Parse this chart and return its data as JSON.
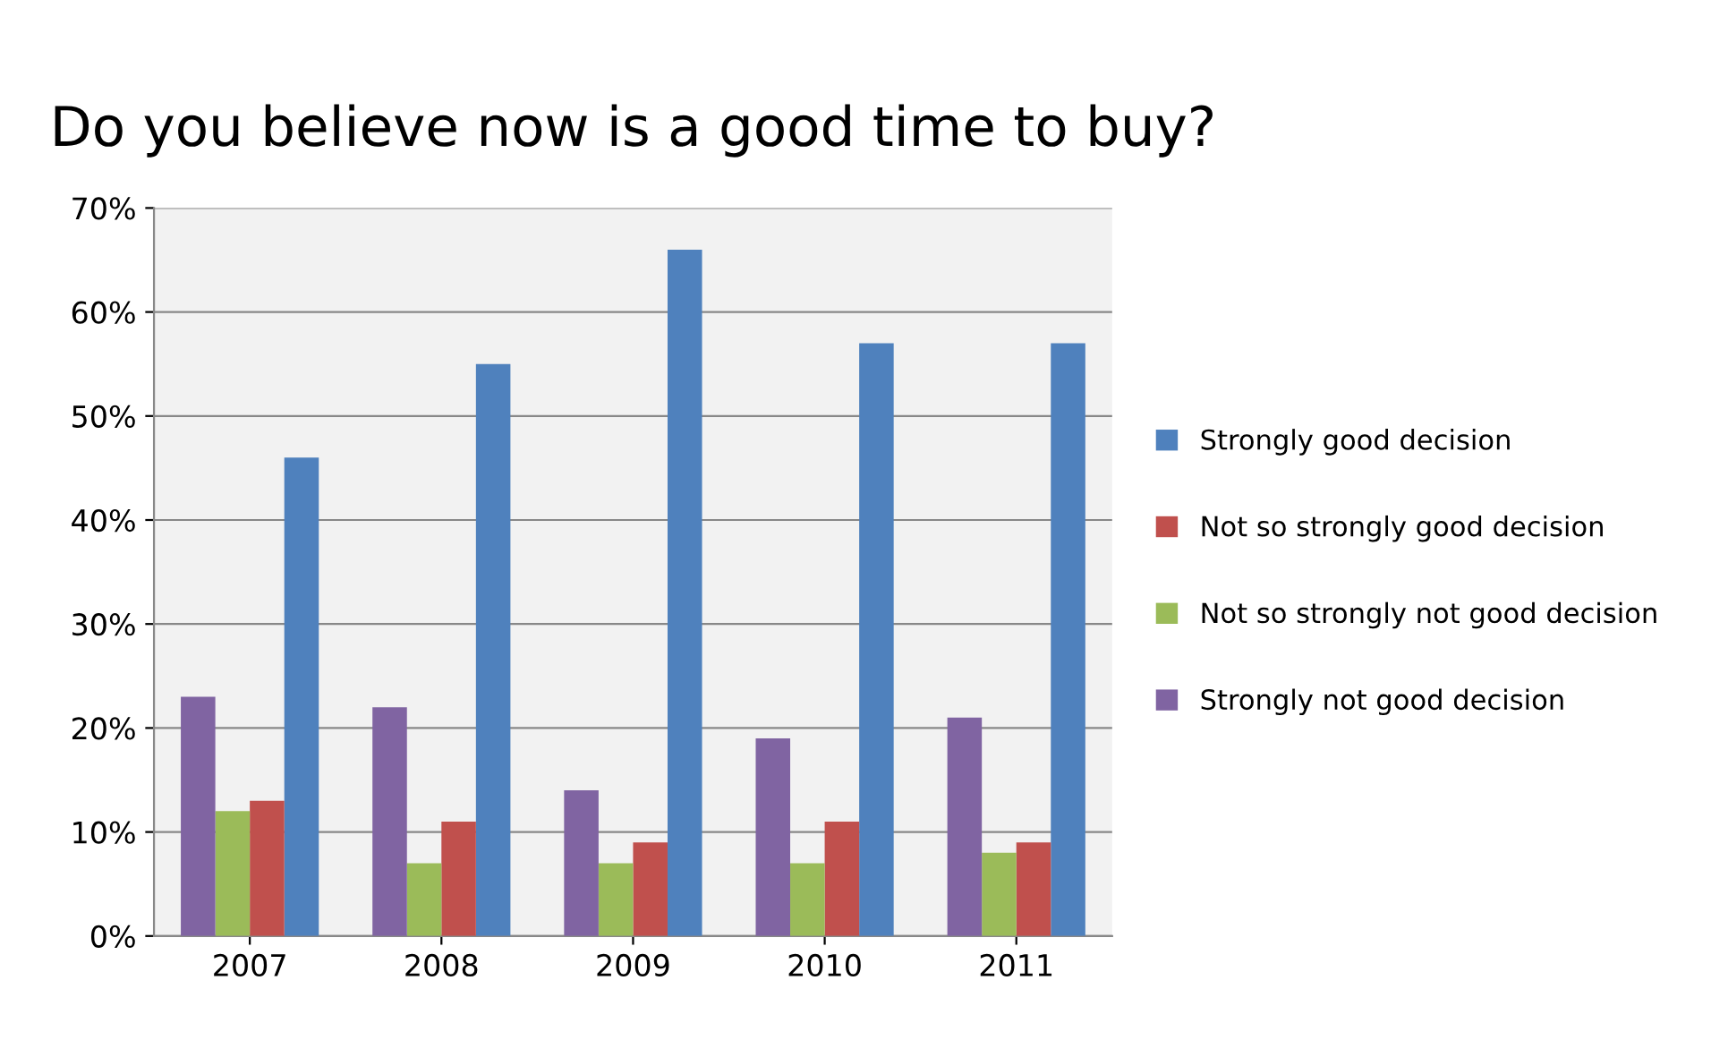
{
  "chart_data": {
    "type": "bar",
    "title": "Do you believe now is a good time to buy?",
    "categories": [
      "2007",
      "2008",
      "2009",
      "2010",
      "2011"
    ],
    "series": [
      {
        "name": "Strongly good decision",
        "color": "#4f81bd",
        "values": [
          46,
          55,
          66,
          57,
          57
        ]
      },
      {
        "name": "Not so strongly good decision",
        "color": "#c0504d",
        "values": [
          13,
          11,
          9,
          11,
          9
        ]
      },
      {
        "name": "Not so strongly not good decision",
        "color": "#9bbb59",
        "values": [
          12,
          7,
          7,
          7,
          8
        ]
      },
      {
        "name": "Strongly not good decision",
        "color": "#8064a2",
        "values": [
          23,
          22,
          14,
          19,
          21
        ]
      }
    ],
    "ylim": [
      0,
      70
    ],
    "yticks": [
      {
        "value": 0,
        "label": "0%"
      },
      {
        "value": 10,
        "label": "10%"
      },
      {
        "value": 20,
        "label": "20%"
      },
      {
        "value": 30,
        "label": "30%"
      },
      {
        "value": 40,
        "label": "40%"
      },
      {
        "value": 50,
        "label": "50%"
      },
      {
        "value": 60,
        "label": "60%"
      },
      {
        "value": 70,
        "label": "70%"
      }
    ],
    "grid": "y",
    "legend": "right"
  }
}
